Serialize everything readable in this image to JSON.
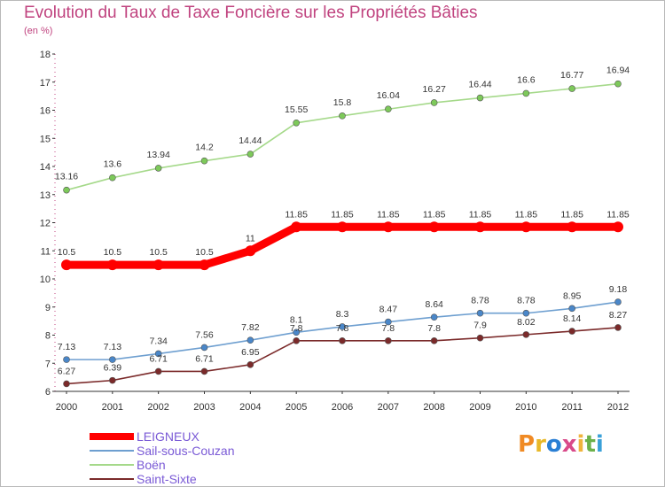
{
  "header": {
    "title": "Evolution du Taux de Taxe Foncière sur les Propriétés Bâties",
    "subtitle": "(en %)"
  },
  "chart_data": {
    "type": "line",
    "title": "Evolution du Taux de Taxe Foncière sur les Propriétés Bâties",
    "ylabel": "(en %)",
    "xlabel": "",
    "x": [
      "2000",
      "2001",
      "2002",
      "2003",
      "2004",
      "2005",
      "2006",
      "2007",
      "2008",
      "2009",
      "2010",
      "2011",
      "2012"
    ],
    "ylim": [
      6,
      18
    ],
    "yticks": [
      6,
      7,
      8,
      9,
      10,
      11,
      12,
      13,
      14,
      15,
      16,
      17,
      18
    ],
    "grid": false,
    "legend_position": "bottom-left",
    "series": [
      {
        "name": "LEIGNEUX",
        "color": "#ff0000",
        "marker": "#ff0000",
        "values": [
          10.5,
          10.5,
          10.5,
          10.5,
          11,
          11.85,
          11.85,
          11.85,
          11.85,
          11.85,
          11.85,
          11.85,
          11.85
        ],
        "labels": [
          "10.5",
          "10.5",
          "10.5",
          "10.5",
          "11",
          "11.85",
          "11.85",
          "11.85",
          "11.85",
          "11.85",
          "11.85",
          "11.85",
          "11.85"
        ]
      },
      {
        "name": "Sail-sous-Couzan",
        "color": "#6e9fd0",
        "marker": "#4a87c9",
        "values": [
          7.13,
          7.13,
          7.34,
          7.56,
          7.82,
          8.1,
          8.3,
          8.47,
          8.64,
          8.78,
          8.78,
          8.95,
          9.18
        ],
        "labels": [
          "7.13",
          "7.13",
          "7.34",
          "7.56",
          "7.82",
          "8.1",
          "8.3",
          "8.47",
          "8.64",
          "8.78",
          "8.78",
          "8.95",
          "9.18"
        ]
      },
      {
        "name": "Boën",
        "color": "#a5d98a",
        "marker": "#7dc95a",
        "values": [
          13.16,
          13.6,
          13.94,
          14.2,
          14.44,
          15.55,
          15.8,
          16.04,
          16.27,
          16.44,
          16.6,
          16.77,
          16.94
        ],
        "labels": [
          "13.16",
          "13.6",
          "13.94",
          "14.2",
          "14.44",
          "15.55",
          "15.8",
          "16.04",
          "16.27",
          "16.44",
          "16.6",
          "16.77",
          "16.94"
        ]
      },
      {
        "name": "Saint-Sixte",
        "color": "#7b2a2a",
        "marker": "#7b2a2a",
        "values": [
          6.27,
          6.39,
          6.71,
          6.71,
          6.95,
          7.8,
          7.8,
          7.8,
          7.8,
          7.9,
          8.02,
          8.14,
          8.27
        ],
        "labels": [
          "6.27",
          "6.39",
          "6.71",
          "6.71",
          "6.95",
          "7.8",
          "7.8",
          "7.8",
          "7.8",
          "7.9",
          "8.02",
          "8.14",
          "8.27"
        ]
      }
    ]
  },
  "legend": {
    "items": [
      {
        "label": "LEIGNEUX",
        "color": "#ff0000"
      },
      {
        "label": "Sail-sous-Couzan",
        "color": "#6e9fd0"
      },
      {
        "label": "Boën",
        "color": "#a5d98a"
      },
      {
        "label": "Saint-Sixte",
        "color": "#7b2a2a"
      }
    ]
  },
  "logo": {
    "letters": [
      "P",
      "r",
      "o",
      "x",
      "i",
      "t",
      "i"
    ],
    "colors": [
      "#f08a24",
      "#e8b828",
      "#2a7fd4",
      "#d94a8a",
      "#f0b43c",
      "#6cb14a",
      "#3aa0d8"
    ]
  }
}
